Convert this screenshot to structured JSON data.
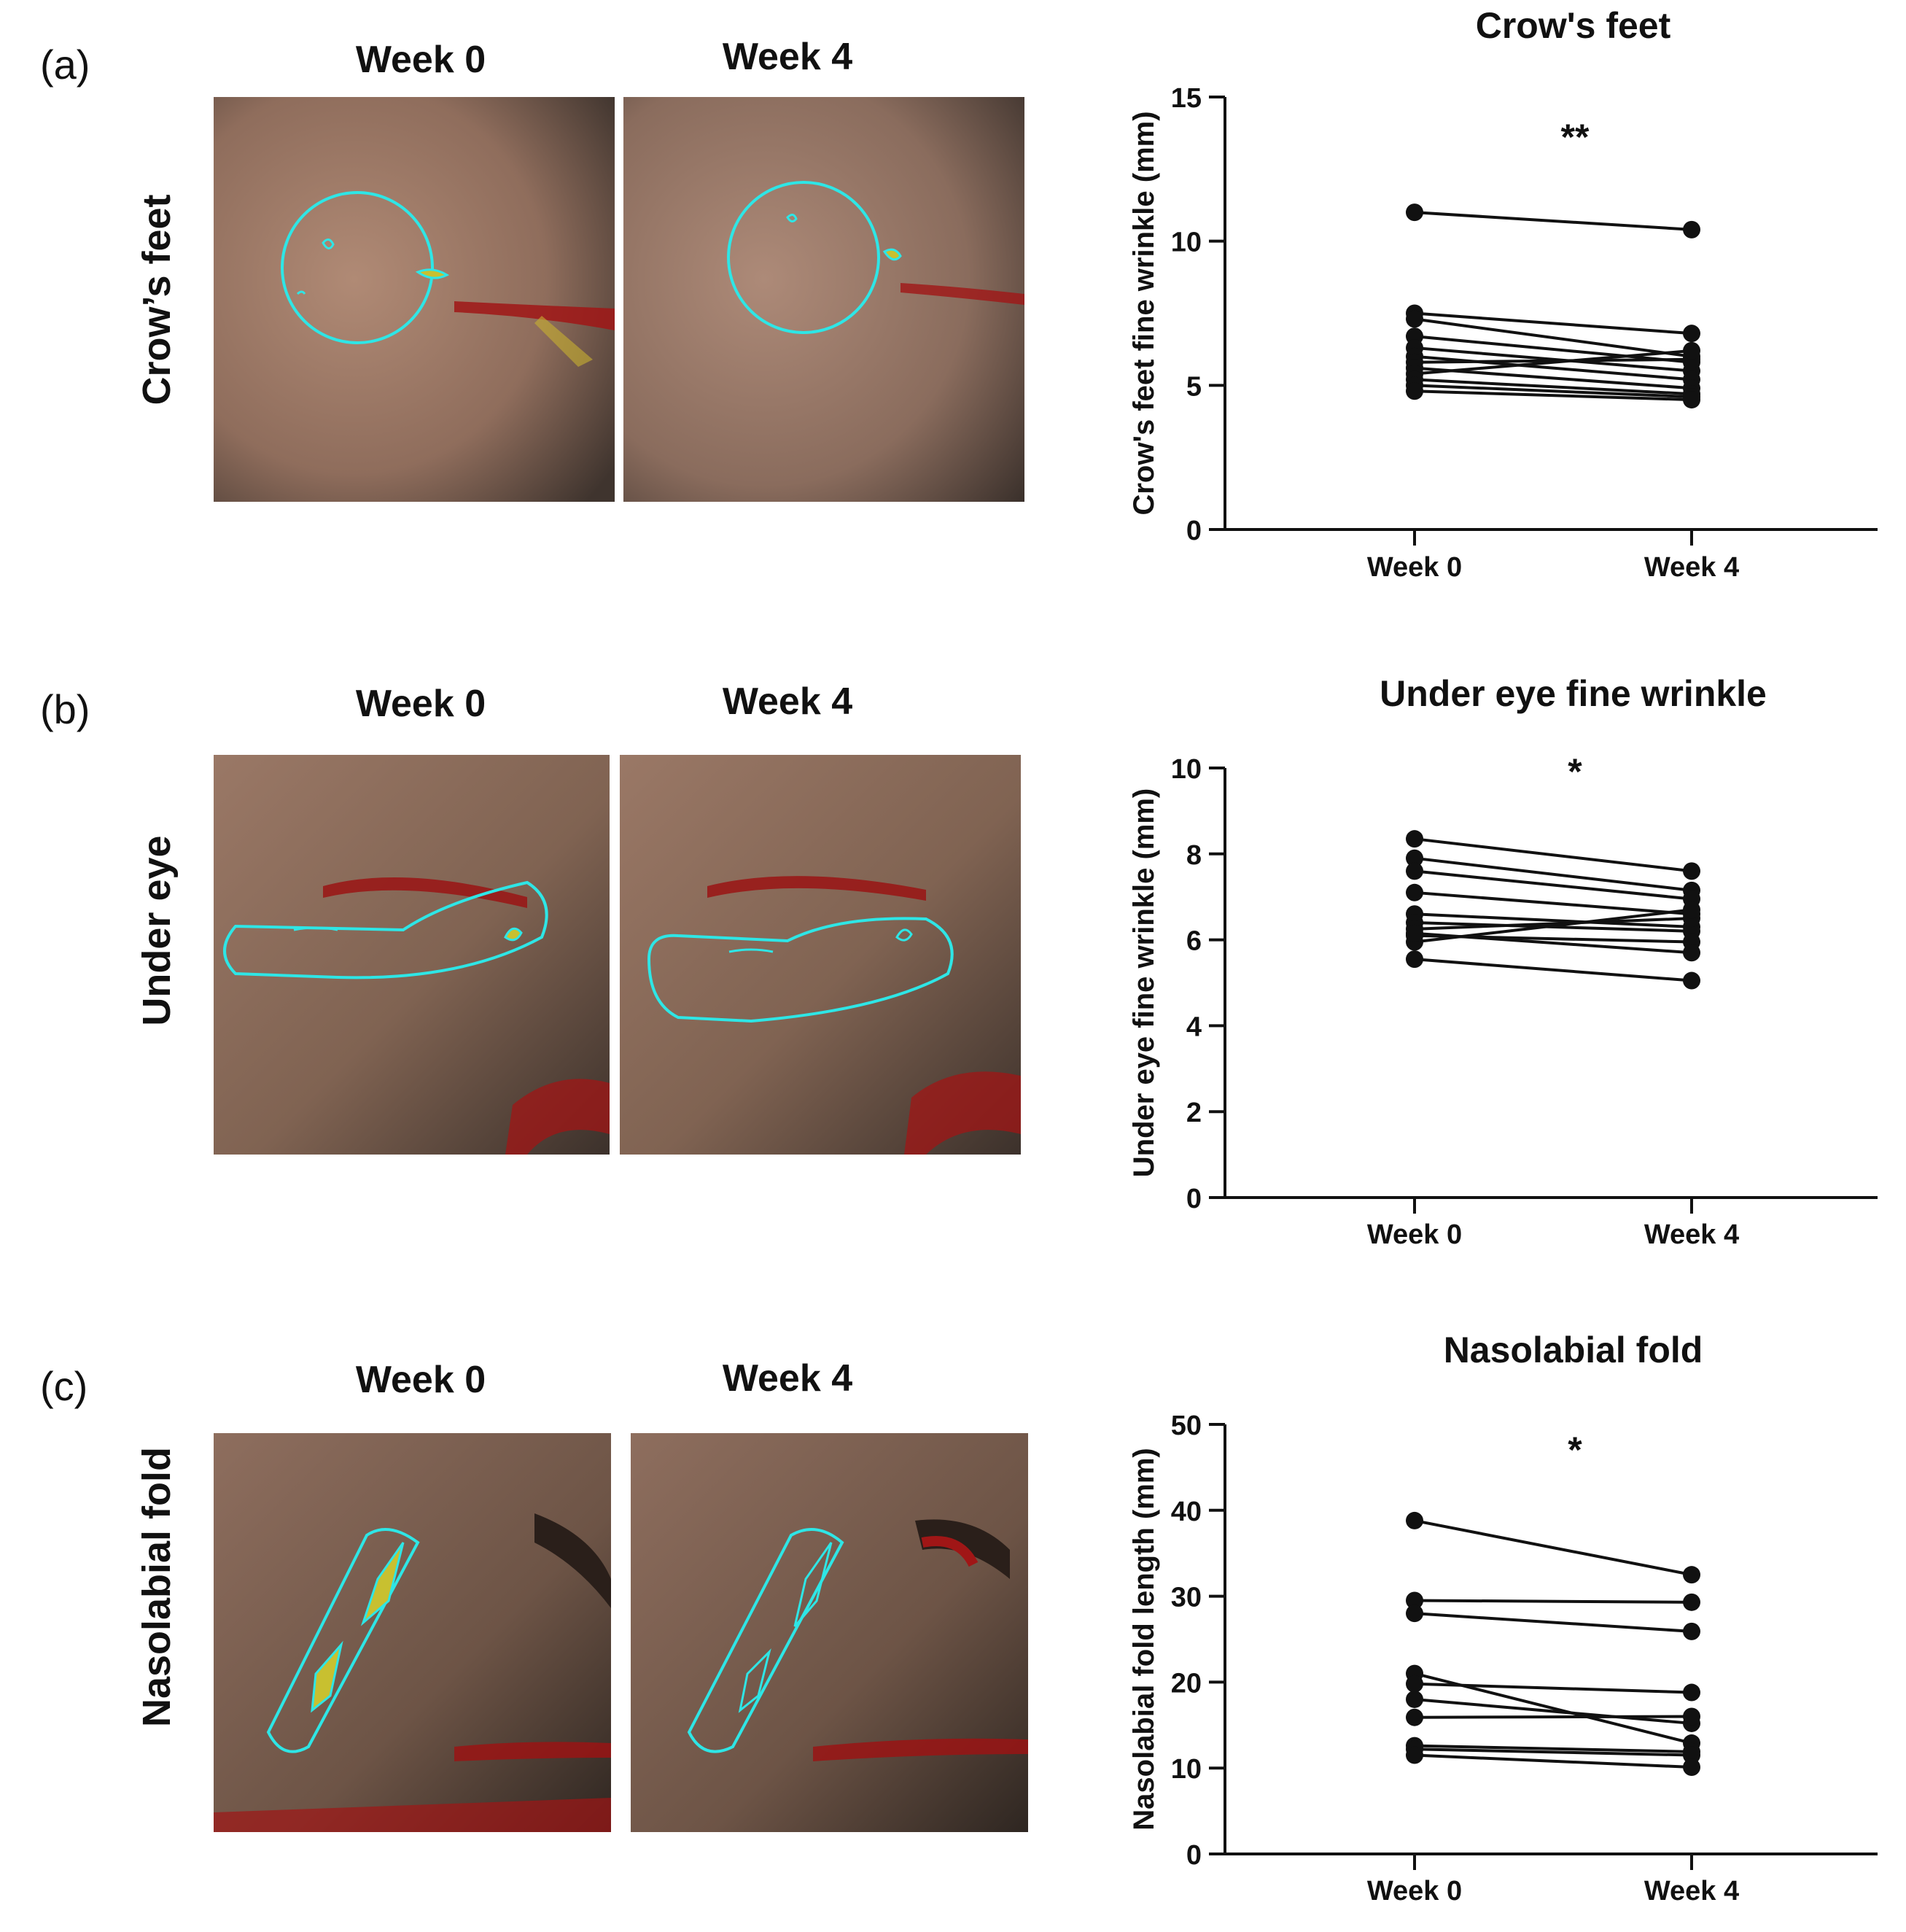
{
  "panels": [
    {
      "label": "(a)",
      "row_label": "Crow’s feet",
      "week0_label": "Week 0",
      "week4_label": "Week 4"
    },
    {
      "label": "(b)",
      "row_label": "Under eye",
      "week0_label": "Week 0",
      "week4_label": "Week 4"
    },
    {
      "label": "(c)",
      "row_label": "Nasolabial fold",
      "week0_label": "Week 0",
      "week4_label": "Week 4"
    }
  ],
  "colors": {
    "skin_base": "#9c7a68",
    "skin_dark": "#3a2e28",
    "outline": "#2ee6e6",
    "yellow": "#c8c030",
    "red": "#b01818"
  },
  "chart_data": [
    {
      "type": "line",
      "title": "Crow's feet",
      "xlabel": "",
      "ylabel": "Crow's feet fine wrinkle (mm)",
      "categories": [
        "Week 0",
        "Week 4"
      ],
      "ylim": [
        0,
        15
      ],
      "yticks": [
        0,
        5,
        10,
        15
      ],
      "significance": "**",
      "series": [
        {
          "name": "S1",
          "values": [
            11.0,
            10.4
          ]
        },
        {
          "name": "S2",
          "values": [
            7.5,
            6.8
          ]
        },
        {
          "name": "S3",
          "values": [
            7.3,
            6.0
          ]
        },
        {
          "name": "S4",
          "values": [
            6.7,
            5.8
          ]
        },
        {
          "name": "S5",
          "values": [
            6.3,
            5.5
          ]
        },
        {
          "name": "S6",
          "values": [
            6.0,
            5.2
          ]
        },
        {
          "name": "S7",
          "values": [
            5.8,
            5.9
          ]
        },
        {
          "name": "S8",
          "values": [
            5.6,
            4.9
          ]
        },
        {
          "name": "S9",
          "values": [
            5.4,
            6.2
          ]
        },
        {
          "name": "S10",
          "values": [
            5.2,
            4.7
          ]
        },
        {
          "name": "S11",
          "values": [
            5.0,
            4.6
          ]
        },
        {
          "name": "S12",
          "values": [
            4.8,
            4.5
          ]
        }
      ]
    },
    {
      "type": "line",
      "title": "Under eye fine wrinkle",
      "xlabel": "",
      "ylabel": "Under eye fine wrinkle (mm)",
      "categories": [
        "Week 0",
        "Week 4"
      ],
      "ylim": [
        0,
        10
      ],
      "yticks": [
        0,
        2,
        4,
        6,
        8,
        10
      ],
      "significance": "*",
      "series": [
        {
          "name": "S1",
          "values": [
            8.35,
            7.6
          ]
        },
        {
          "name": "S2",
          "values": [
            7.9,
            7.15
          ]
        },
        {
          "name": "S3",
          "values": [
            7.6,
            6.95
          ]
        },
        {
          "name": "S4",
          "values": [
            7.1,
            6.6
          ]
        },
        {
          "name": "S5",
          "values": [
            6.6,
            6.3
          ]
        },
        {
          "name": "S6",
          "values": [
            6.4,
            6.2
          ]
        },
        {
          "name": "S7",
          "values": [
            6.25,
            6.5
          ]
        },
        {
          "name": "S8",
          "values": [
            6.1,
            5.95
          ]
        },
        {
          "name": "S9",
          "values": [
            5.95,
            6.7
          ]
        },
        {
          "name": "S10",
          "values": [
            5.55,
            5.05
          ]
        },
        {
          "name": "S11",
          "values": [
            6.15,
            5.7
          ]
        }
      ]
    },
    {
      "type": "line",
      "title": "Nasolabial fold",
      "xlabel": "",
      "ylabel": "Nasolabial fold length (mm)",
      "categories": [
        "Week 0",
        "Week 4"
      ],
      "ylim": [
        0,
        50
      ],
      "yticks": [
        0,
        10,
        20,
        30,
        40,
        50
      ],
      "significance": "*",
      "series": [
        {
          "name": "S1",
          "values": [
            38.8,
            32.5
          ]
        },
        {
          "name": "S2",
          "values": [
            29.5,
            29.3
          ]
        },
        {
          "name": "S3",
          "values": [
            28.0,
            25.9
          ]
        },
        {
          "name": "S4",
          "values": [
            21.0,
            12.9
          ]
        },
        {
          "name": "S5",
          "values": [
            19.8,
            18.8
          ]
        },
        {
          "name": "S6",
          "values": [
            18.0,
            15.2
          ]
        },
        {
          "name": "S7",
          "values": [
            15.9,
            16.0
          ]
        },
        {
          "name": "S8",
          "values": [
            12.6,
            11.9
          ]
        },
        {
          "name": "S9",
          "values": [
            12.2,
            11.5
          ]
        },
        {
          "name": "S10",
          "values": [
            11.5,
            10.1
          ]
        }
      ]
    }
  ]
}
